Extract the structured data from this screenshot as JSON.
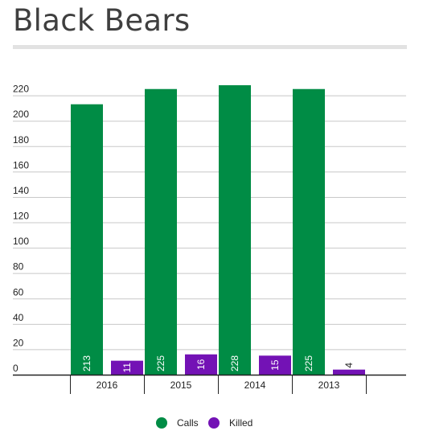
{
  "title": "Black Bears",
  "colors": {
    "calls": "#008c45",
    "killed": "#7312b5",
    "grid": "#c8c8c8",
    "axis": "#222222"
  },
  "chart_data": {
    "type": "bar",
    "title": "Black Bears",
    "categories": [
      "2016",
      "2015",
      "2014",
      "2013"
    ],
    "series": [
      {
        "name": "Calls",
        "values": [
          213,
          225,
          228,
          225
        ],
        "color": "#008c45"
      },
      {
        "name": "Killed",
        "values": [
          11,
          16,
          15,
          4
        ],
        "color": "#7312b5"
      }
    ],
    "ylim": [
      0,
      228
    ],
    "yticks": [
      0,
      20,
      40,
      60,
      80,
      100,
      120,
      140,
      160,
      180,
      200,
      220
    ],
    "grid": true,
    "legend": "bottom-center",
    "data_labels": "inside-rotated"
  }
}
